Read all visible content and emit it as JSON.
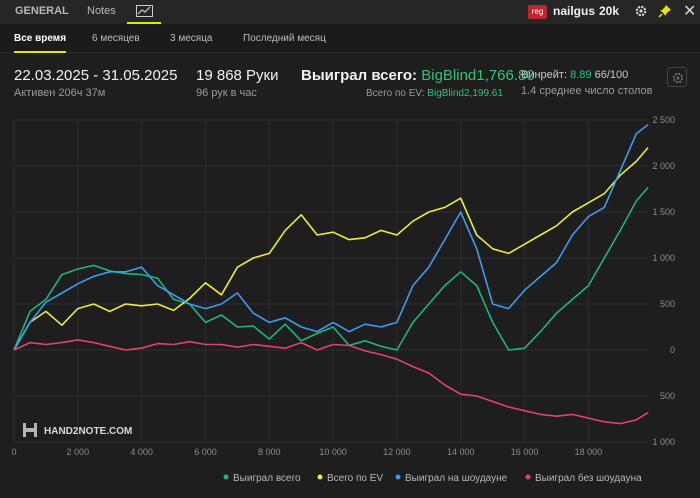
{
  "tabs": {
    "general": "GENERAL",
    "notes": "Notes",
    "graph_icon": "line-chart-icon"
  },
  "user": {
    "site_badge": "reg",
    "nickname": "nailgus",
    "limit": "20k"
  },
  "periods": [
    "Все время",
    "6 месяцев",
    "3 месяца",
    "Последний месяц"
  ],
  "stats": {
    "date_range": "22.03.2025 - 31.05.2025",
    "active_time": "Активен 206ч 37м",
    "hands": "19 868 Руки",
    "hands_per_hour": "96 рук в час",
    "won_label": "Выиграл всего:",
    "won_value": "BigBlind1,766.80",
    "ev_label": "Всего по EV:",
    "ev_value": "BigBlind2,199.61",
    "winrate_label": "Винрейт:",
    "winrate_value": "8.89",
    "winrate_sample": "66/100",
    "avg_tables": "1.4 среднее число столов"
  },
  "colors": {
    "accent": "#e6e600",
    "won": "#1db77c",
    "ev": "#ecec3a",
    "showdown": "#3d9bf0",
    "nonshowdown": "#e2426e"
  },
  "watermark": "HAND2NOTE.COM",
  "chart_data": {
    "type": "line",
    "xlim": [
      0,
      19868
    ],
    "ylim": [
      -1000,
      2500
    ],
    "x_ticks": [
      0,
      2000,
      4000,
      6000,
      8000,
      10000,
      12000,
      14000,
      16000,
      18000
    ],
    "x_tick_labels": [
      "0",
      "2 000",
      "4 000",
      "6 000",
      "8 000",
      "10 000",
      "12 000",
      "14 000",
      "16 000",
      "18 000"
    ],
    "y_ticks": [
      2500,
      2000,
      1500,
      1000,
      500,
      0,
      -500,
      -1000
    ],
    "y_tick_labels": [
      "2 500",
      "2 000",
      "1 500",
      "1 000",
      "500",
      "0",
      "500",
      "1 000"
    ],
    "series": [
      {
        "name": "Выиграл всего",
        "color": "#1db77c",
        "x": [
          0,
          500,
          1000,
          1500,
          2000,
          2500,
          3000,
          3500,
          4000,
          4500,
          5000,
          5500,
          6000,
          6500,
          7000,
          7500,
          8000,
          8500,
          9000,
          9500,
          10000,
          10500,
          11000,
          11500,
          12000,
          12500,
          13000,
          13500,
          14000,
          14500,
          15000,
          15500,
          16000,
          16500,
          17000,
          17500,
          18000,
          18500,
          19000,
          19500,
          19868
        ],
        "values": [
          0,
          420,
          550,
          820,
          880,
          920,
          860,
          830,
          820,
          780,
          550,
          500,
          300,
          380,
          250,
          260,
          120,
          280,
          100,
          180,
          250,
          50,
          100,
          40,
          0,
          300,
          500,
          700,
          850,
          700,
          300,
          0,
          20,
          200,
          400,
          550,
          700,
          1000,
          1300,
          1620,
          1766.8
        ]
      },
      {
        "name": "Всего по EV",
        "color": "#ecec3a",
        "x": [
          0,
          500,
          1000,
          1500,
          2000,
          2500,
          3000,
          3500,
          4000,
          4500,
          5000,
          5500,
          6000,
          6500,
          7000,
          7500,
          8000,
          8500,
          9000,
          9500,
          10000,
          10500,
          11000,
          11500,
          12000,
          12500,
          13000,
          13500,
          14000,
          14500,
          15000,
          15500,
          16000,
          16500,
          17000,
          17500,
          18000,
          18500,
          19000,
          19500,
          19868
        ],
        "values": [
          0,
          300,
          420,
          270,
          450,
          500,
          420,
          500,
          480,
          500,
          430,
          560,
          730,
          600,
          900,
          1000,
          1050,
          1300,
          1470,
          1250,
          1280,
          1200,
          1220,
          1300,
          1250,
          1400,
          1500,
          1550,
          1650,
          1250,
          1100,
          1050,
          1150,
          1250,
          1350,
          1500,
          1600,
          1700,
          1900,
          2050,
          2199.61
        ]
      },
      {
        "name": "Выиграл на шоудауне",
        "color": "#3d9bf0",
        "x": [
          0,
          500,
          1000,
          1500,
          2000,
          2500,
          3000,
          3500,
          4000,
          4500,
          5000,
          5500,
          6000,
          6500,
          7000,
          7500,
          8000,
          8500,
          9000,
          9500,
          10000,
          10500,
          11000,
          11500,
          12000,
          12500,
          13000,
          13500,
          14000,
          14500,
          15000,
          15500,
          16000,
          16500,
          17000,
          17500,
          18000,
          18500,
          19000,
          19500,
          19868
        ],
        "values": [
          0,
          300,
          520,
          620,
          720,
          800,
          850,
          850,
          900,
          700,
          600,
          500,
          450,
          500,
          620,
          400,
          300,
          350,
          250,
          200,
          300,
          200,
          280,
          250,
          300,
          700,
          900,
          1200,
          1500,
          1100,
          500,
          450,
          650,
          800,
          950,
          1250,
          1450,
          1550,
          1950,
          2350,
          2450
        ]
      },
      {
        "name": "Выиграл без шоудауна",
        "color": "#e2426e",
        "x": [
          0,
          500,
          1000,
          1500,
          2000,
          2500,
          3000,
          3500,
          4000,
          4500,
          5000,
          5500,
          6000,
          6500,
          7000,
          7500,
          8000,
          8500,
          9000,
          9500,
          10000,
          10500,
          11000,
          11500,
          12000,
          12500,
          13000,
          13500,
          14000,
          14500,
          15000,
          15500,
          16000,
          16500,
          17000,
          17500,
          18000,
          18500,
          19000,
          19500,
          19868
        ],
        "values": [
          0,
          80,
          60,
          80,
          110,
          80,
          40,
          0,
          20,
          70,
          60,
          90,
          60,
          60,
          30,
          60,
          40,
          20,
          80,
          0,
          60,
          50,
          -10,
          -50,
          -100,
          -180,
          -250,
          -380,
          -480,
          -500,
          -560,
          -620,
          -660,
          -700,
          -720,
          -700,
          -740,
          -780,
          -800,
          -760,
          -680
        ]
      }
    ]
  }
}
